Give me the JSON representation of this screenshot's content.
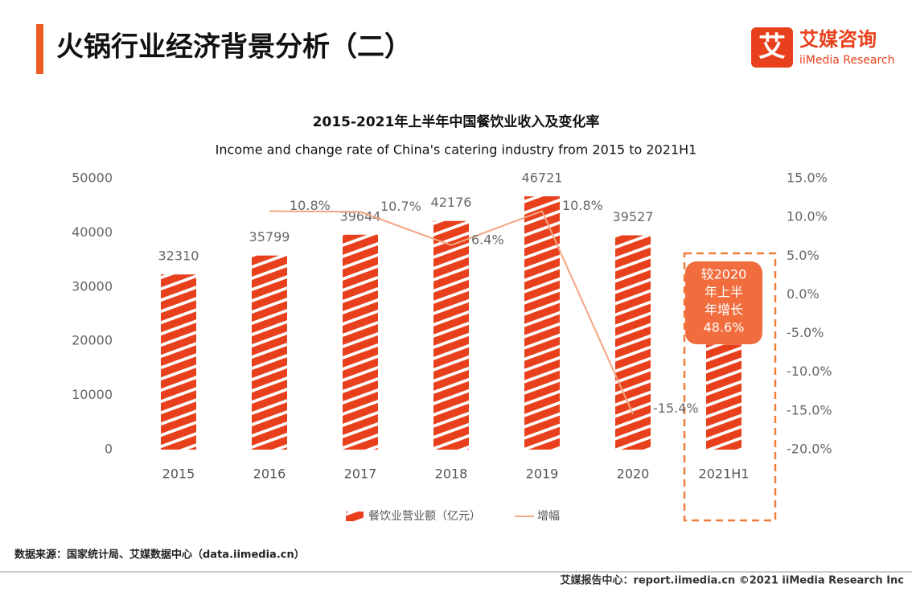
{
  "header": {
    "title": "火锅行业经济背景分析（二）",
    "logo_cn": "艾媒咨询",
    "logo_en": "iiMedia Research",
    "logo_icon": "艾"
  },
  "chart_data": {
    "type": "bar",
    "title": "2015-2021年上半年中国餐饮业收入及变化率",
    "subtitle": "Income and change rate of China's catering industry from 2015 to 2021H1",
    "categories": [
      "2015",
      "2016",
      "2017",
      "2018",
      "2019",
      "2020",
      "2021H1"
    ],
    "series": [
      {
        "name": "餐饮业营业额（亿元）",
        "color": "#e8401c",
        "values": [
          32310,
          35799,
          39644,
          42176,
          46721,
          39527,
          19400
        ],
        "value_labels": [
          "32310",
          "35799",
          "39644",
          "42176",
          "46721",
          "39527",
          null
        ]
      },
      {
        "name": "增幅",
        "type": "line",
        "axis": "y2",
        "color": "#f4a582",
        "values": [
          null,
          10.8,
          10.7,
          6.4,
          10.8,
          -15.4,
          null
        ],
        "value_labels": [
          null,
          "10.8%",
          "10.7%",
          "6.4%",
          "10.8%",
          "-15.4%",
          null
        ]
      }
    ],
    "ylim": [
      0,
      50000
    ],
    "yticks": [
      0,
      10000,
      20000,
      30000,
      40000,
      50000
    ],
    "y2lim": [
      -20,
      15
    ],
    "y2ticks": [
      {
        "value": 15,
        "label": "15.0%"
      },
      {
        "value": 10,
        "label": "10.0%"
      },
      {
        "value": 5,
        "label": "5.0%"
      },
      {
        "value": 0,
        "label": "0.0%"
      },
      {
        "value": -5,
        "label": "-5.0%"
      },
      {
        "value": -10,
        "label": "-10.0%"
      },
      {
        "value": -15,
        "label": "-15.0%"
      },
      {
        "value": -20,
        "label": "-20.0%"
      }
    ],
    "annotation_lines": [
      "较2020",
      "年上半",
      "年增长",
      "48.6%"
    ],
    "legend": "bottom"
  },
  "footer": {
    "source": "数据来源：国家统计局、艾媒数据中心（data.iimedia.cn）",
    "credit": "艾媒报告中心：report.iimedia.cn  ©2021  iiMedia Research  Inc"
  }
}
